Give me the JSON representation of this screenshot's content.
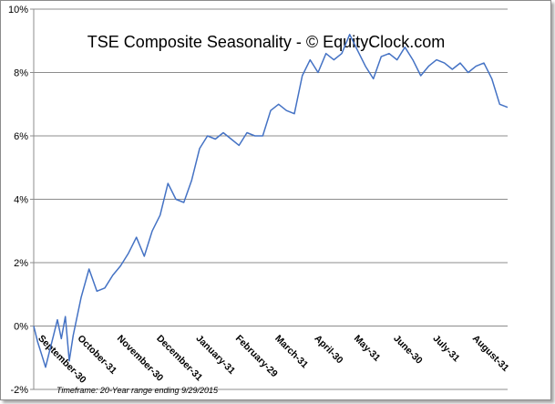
{
  "chart_data": {
    "type": "line",
    "title": "TSE Composite Seasonality - © EquityClock.com",
    "footnote": "Timeframe: 20-Year range ending 9/29/2015",
    "y_ticks": [
      "10%",
      "8%",
      "6%",
      "4%",
      "2%",
      "0%",
      "-2%"
    ],
    "y_tick_values": [
      10,
      8,
      6,
      4,
      2,
      0,
      -2
    ],
    "ylim": [
      -2,
      10
    ],
    "x_categories": [
      "September-30",
      "October-31",
      "November-30",
      "December-31",
      "January-31",
      "February-29",
      "March-31",
      "April-30",
      "May-31",
      "June-30",
      "July-31",
      "August-31"
    ],
    "grid": "horizontal",
    "legend": "none",
    "line_color": "#4472c4",
    "series": [
      {
        "x": [
          0,
          0.1,
          0.2,
          0.3,
          0.4,
          0.5,
          0.6,
          0.7,
          0.8,
          0.9,
          1.0,
          1.2,
          1.4,
          1.6,
          1.8,
          2.0,
          2.2,
          2.4,
          2.6,
          2.8,
          3.0,
          3.2,
          3.4,
          3.6,
          3.8,
          4.0,
          4.2,
          4.4,
          4.6,
          4.8,
          5.0,
          5.2,
          5.4,
          5.6,
          5.8,
          6.0,
          6.2,
          6.4,
          6.6,
          6.8,
          7.0,
          7.2,
          7.4,
          7.6,
          7.8,
          8.0,
          8.2,
          8.4,
          8.6,
          8.8,
          9.0,
          9.2,
          9.4,
          9.6,
          9.8,
          10.0,
          10.2,
          10.4,
          10.6,
          10.8,
          11.0,
          11.2,
          11.4,
          11.6,
          11.8,
          12.0
        ],
        "y": [
          0.0,
          -0.5,
          -0.9,
          -1.3,
          -0.8,
          -0.3,
          0.2,
          -0.4,
          0.3,
          -1.1,
          -0.3,
          0.9,
          1.8,
          1.1,
          1.2,
          1.6,
          1.9,
          2.3,
          2.8,
          2.2,
          3.0,
          3.5,
          4.5,
          4.0,
          3.9,
          4.6,
          5.6,
          6.0,
          5.9,
          6.1,
          5.9,
          5.7,
          6.1,
          6.0,
          6.0,
          6.8,
          7.0,
          6.8,
          6.7,
          7.9,
          8.4,
          8.0,
          8.6,
          8.4,
          8.6,
          9.2,
          8.7,
          8.2,
          7.8,
          8.5,
          8.6,
          8.4,
          8.8,
          8.4,
          7.9,
          8.2,
          8.4,
          8.3,
          8.1,
          8.3,
          8.0,
          8.2,
          8.3,
          7.8,
          7.0,
          6.9
        ]
      }
    ]
  }
}
